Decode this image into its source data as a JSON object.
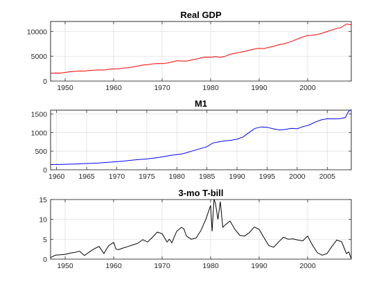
{
  "chart_data": [
    {
      "type": "line",
      "title": "Real GDP",
      "xlabel": "",
      "ylabel": "",
      "xlim": [
        1947,
        2009
      ],
      "ylim": [
        0,
        12000
      ],
      "xticks": [
        1950,
        1960,
        1970,
        1980,
        1990,
        2000
      ],
      "yticks": [
        0,
        5000,
        10000
      ],
      "grid": true,
      "color": "#ff0000",
      "series": [
        {
          "x": [
            1947,
            1948,
            1949,
            1950,
            1951,
            1952,
            1953,
            1954,
            1955,
            1956,
            1957,
            1958,
            1959,
            1960,
            1961,
            1962,
            1963,
            1964,
            1965,
            1966,
            1967,
            1968,
            1969,
            1970,
            1971,
            1972,
            1973,
            1974,
            1975,
            1976,
            1977,
            1978,
            1979,
            1980,
            1981,
            1982,
            1983,
            1984,
            1985,
            1986,
            1987,
            1988,
            1989,
            1990,
            1991,
            1992,
            1993,
            1994,
            1995,
            1996,
            1997,
            1998,
            1999,
            2000,
            2001,
            2002,
            2003,
            2004,
            2005,
            2006,
            2007,
            2008,
            2009
          ],
          "values": [
            1570,
            1620,
            1610,
            1750,
            1880,
            1950,
            2030,
            2010,
            2150,
            2190,
            2240,
            2220,
            2380,
            2440,
            2460,
            2610,
            2700,
            2850,
            3030,
            3220,
            3290,
            3440,
            3550,
            3530,
            3630,
            3840,
            4070,
            4040,
            4020,
            4240,
            4430,
            4680,
            4830,
            4800,
            4920,
            4800,
            5000,
            5380,
            5590,
            5780,
            5980,
            6230,
            6450,
            6580,
            6550,
            6790,
            6990,
            7310,
            7480,
            7770,
            8120,
            8510,
            8880,
            9180,
            9230,
            9390,
            9630,
            9980,
            10300,
            10580,
            10840,
            11500,
            11350
          ]
        }
      ]
    },
    {
      "type": "line",
      "title": "M1",
      "xlabel": "",
      "ylabel": "",
      "xlim": [
        1959,
        2009
      ],
      "ylim": [
        0,
        1600
      ],
      "xticks": [
        1960,
        1965,
        1970,
        1975,
        1980,
        1985,
        1990,
        1995,
        2000,
        2005
      ],
      "yticks": [
        0,
        500,
        1000,
        1500
      ],
      "grid": true,
      "color": "#0000ff",
      "series": [
        {
          "x": [
            1959,
            1961,
            1963,
            1965,
            1967,
            1969,
            1971,
            1973,
            1975,
            1977,
            1979,
            1981,
            1983,
            1985,
            1986,
            1987,
            1988,
            1989,
            1990,
            1991,
            1992,
            1993,
            1994,
            1995,
            1996,
            1997,
            1998,
            1999,
            2000,
            2001,
            2002,
            2003,
            2004,
            2005,
            2006,
            2007,
            2008,
            2008.5,
            2009
          ],
          "values": [
            140,
            143,
            152,
            167,
            183,
            205,
            230,
            265,
            290,
            330,
            385,
            430,
            525,
            620,
            720,
            750,
            775,
            790,
            820,
            880,
            1000,
            1110,
            1150,
            1140,
            1100,
            1070,
            1080,
            1110,
            1100,
            1160,
            1200,
            1280,
            1340,
            1370,
            1365,
            1370,
            1400,
            1560,
            1620
          ]
        }
      ]
    },
    {
      "type": "line",
      "title": "3-mo T-bill",
      "xlabel": "",
      "ylabel": "",
      "xlim": [
        1947,
        2009
      ],
      "ylim": [
        0,
        15
      ],
      "xticks": [
        1950,
        1960,
        1970,
        1980,
        1990,
        2000
      ],
      "yticks": [
        0,
        5,
        10,
        15
      ],
      "grid": true,
      "color": "#000000",
      "series": [
        {
          "x": [
            1947,
            1948,
            1949,
            1950,
            1951,
            1952,
            1953,
            1953.5,
            1954,
            1955,
            1956,
            1957,
            1958,
            1958.5,
            1959,
            1960,
            1960.5,
            1961,
            1962,
            1963,
            1964,
            1965,
            1966,
            1967,
            1968,
            1969,
            1970,
            1971,
            1971.5,
            1972,
            1973,
            1974,
            1974.5,
            1975,
            1976,
            1977,
            1978,
            1979,
            1980,
            1980.3,
            1980.7,
            1981,
            1981.5,
            1982,
            1982.5,
            1983,
            1984,
            1985,
            1986,
            1987,
            1988,
            1989,
            1990,
            1991,
            1992,
            1993,
            1994,
            1995,
            1996,
            1997,
            1998,
            1999,
            2000,
            2001,
            2002,
            2003,
            2004,
            2005,
            2006,
            2007,
            2008,
            2008.5,
            2009
          ],
          "values": [
            0.4,
            1.0,
            1.1,
            1.2,
            1.5,
            1.7,
            2.0,
            1.4,
            0.9,
            1.8,
            2.6,
            3.2,
            1.4,
            2.5,
            3.4,
            4.2,
            2.5,
            2.4,
            2.8,
            3.2,
            3.6,
            4.0,
            4.9,
            4.3,
            5.5,
            6.8,
            6.4,
            4.3,
            5.0,
            4.1,
            7.0,
            8.0,
            7.6,
            5.8,
            5.0,
            5.3,
            7.2,
            10.0,
            13.5,
            7.0,
            15.1,
            14.0,
            10.0,
            14.5,
            8.0,
            8.6,
            9.6,
            7.5,
            6.0,
            5.8,
            6.7,
            8.1,
            7.5,
            5.4,
            3.4,
            3.0,
            4.3,
            5.5,
            5.0,
            5.1,
            4.8,
            4.6,
            5.8,
            3.5,
            1.6,
            1.0,
            1.4,
            3.2,
            4.8,
            4.4,
            1.4,
            1.8,
            0.1
          ]
        }
      ]
    }
  ]
}
